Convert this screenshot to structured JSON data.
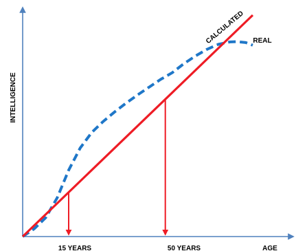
{
  "chart_data": {
    "type": "line",
    "title": "",
    "xlabel": "AGE",
    "ylabel": "INTELLIGENCE",
    "xlim": [
      0,
      100
    ],
    "ylim": [
      0,
      100
    ],
    "grid": false,
    "legend": "none",
    "annotations": [
      "15 YEARS",
      "50 YEARS"
    ],
    "marked_x": [
      20,
      62
    ],
    "series": [
      {
        "name": "CALCULATED",
        "style": "solid",
        "color": "#ee1c25",
        "x": [
          0,
          100
        ],
        "y": [
          0,
          100
        ]
      },
      {
        "name": "REAL",
        "style": "dashed",
        "color": "#1f77c8",
        "x": [
          0,
          5,
          10,
          15,
          20,
          25,
          30,
          35,
          40,
          45,
          50,
          55,
          60,
          65,
          70,
          75,
          80,
          85,
          90,
          93,
          97,
          100
        ],
        "y": [
          0,
          3.5,
          8.5,
          17.5,
          30,
          40,
          47,
          52,
          56.3,
          60.3,
          64,
          67.5,
          71,
          74,
          78,
          81.5,
          84.5,
          86.8,
          87.9,
          88,
          87.6,
          86.4
        ]
      }
    ]
  },
  "colors": {
    "axis": "#4f81bd",
    "calculated": "#ee1c25",
    "real": "#1f77c8",
    "marker": "#ee1c25"
  }
}
